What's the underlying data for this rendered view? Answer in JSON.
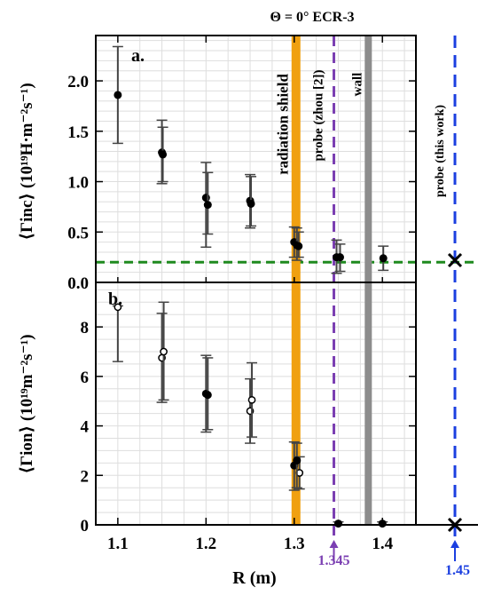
{
  "header": {
    "title": "Θ = 0° ECR-3"
  },
  "chart_data": [
    {
      "type": "scatter",
      "panel_label": "a.",
      "xlim": [
        1.075,
        1.438
      ],
      "ylim": [
        0,
        2.45
      ],
      "yticks": [
        0.0,
        0.5,
        1.0,
        1.5,
        2.0
      ],
      "ytick_labels": [
        "0.0",
        "0.5",
        "1.0",
        "1.5",
        "2.0"
      ],
      "ylabel": "⟨Γinc⟩ (10¹⁹H·m⁻²s⁻¹)",
      "grid": true,
      "series": [
        {
          "marker": "filled-circle",
          "points": [
            {
              "x": 1.1,
              "y": 1.86,
              "lo": 1.38,
              "hi": 2.34
            },
            {
              "x": 1.15,
              "y": 1.29,
              "lo": 0.98,
              "hi": 1.61
            },
            {
              "x": 1.151,
              "y": 1.27,
              "lo": 1.0,
              "hi": 1.54
            },
            {
              "x": 1.2,
              "y": 0.84,
              "lo": 0.35,
              "hi": 1.19
            },
            {
              "x": 1.202,
              "y": 0.77,
              "lo": 0.48,
              "hi": 1.09
            },
            {
              "x": 1.25,
              "y": 0.81,
              "lo": 0.54,
              "hi": 1.07
            },
            {
              "x": 1.251,
              "y": 0.78,
              "lo": 0.56,
              "hi": 1.05
            },
            {
              "x": 1.3,
              "y": 0.4,
              "lo": 0.25,
              "hi": 0.55
            },
            {
              "x": 1.303,
              "y": 0.37,
              "lo": 0.22,
              "hi": 0.54
            },
            {
              "x": 1.305,
              "y": 0.36,
              "lo": 0.25,
              "hi": 0.5
            },
            {
              "x": 1.348,
              "y": 0.25,
              "lo": 0.09,
              "hi": 0.42
            },
            {
              "x": 1.352,
              "y": 0.25,
              "lo": 0.11,
              "hi": 0.38
            },
            {
              "x": 1.401,
              "y": 0.24,
              "lo": 0.12,
              "hi": 0.36
            }
          ]
        }
      ],
      "reference_line": {
        "y": 0.2,
        "style": "dashed",
        "color": "#1f8a1f"
      }
    },
    {
      "type": "scatter",
      "panel_label": "b.",
      "xlim": [
        1.075,
        1.438
      ],
      "ylim": [
        0,
        9.8
      ],
      "yticks": [
        0,
        2,
        4,
        6,
        8
      ],
      "ytick_labels": [
        "0",
        "2",
        "4",
        "6",
        "8"
      ],
      "xticks": [
        1.1,
        1.2,
        1.3,
        1.4
      ],
      "xtick_labels": [
        "1.1",
        "1.2",
        "1.3",
        "1.4"
      ],
      "xlabel": "R (m)",
      "ylabel": "⟨Γion⟩ (10¹⁹m⁻²s⁻¹)",
      "grid": true,
      "series": [
        {
          "marker": "open-circle",
          "points": [
            {
              "x": 1.1,
              "y": 8.8,
              "lo": 6.6,
              "hi": 8.85
            },
            {
              "x": 1.15,
              "y": 6.75,
              "lo": 4.95,
              "hi": 8.55
            },
            {
              "x": 1.152,
              "y": 7.0,
              "lo": 5.05,
              "hi": 9.0
            },
            {
              "x": 1.25,
              "y": 4.6,
              "lo": 3.3,
              "hi": 5.9
            },
            {
              "x": 1.252,
              "y": 5.05,
              "lo": 3.55,
              "hi": 6.55
            },
            {
              "x": 1.306,
              "y": 2.1,
              "lo": 1.45,
              "hi": 2.75
            }
          ]
        },
        {
          "marker": "filled-circle",
          "points": [
            {
              "x": 1.2,
              "y": 5.3,
              "lo": 3.75,
              "hi": 6.85
            },
            {
              "x": 1.202,
              "y": 5.25,
              "lo": 3.85,
              "hi": 6.75
            },
            {
              "x": 1.3,
              "y": 2.4,
              "lo": 1.4,
              "hi": 3.35
            },
            {
              "x": 1.303,
              "y": 2.6,
              "lo": 1.5,
              "hi": 3.3
            },
            {
              "x": 1.35,
              "y": 0.05,
              "lo": 0.0,
              "hi": 0.12
            },
            {
              "x": 1.4,
              "y": 0.05,
              "lo": 0.0,
              "hi": 0.12
            }
          ]
        }
      ]
    }
  ],
  "vertical_markers": [
    {
      "name": "radiation-shield",
      "x": 1.302,
      "label": "radiation shield",
      "color": "#f0a010"
    },
    {
      "name": "probe-zhou",
      "x": 1.345,
      "label": "probe (zhou [2])",
      "color": "#7b3fb2",
      "value_label": "1.345"
    },
    {
      "name": "wall",
      "x": 1.384,
      "label": "wall",
      "color": "#8c8c8c"
    }
  ],
  "outside_probe": {
    "label": "probe (this work)",
    "value_label": "1.45",
    "color": "#1b3fe0",
    "marker_a_y": 0.22,
    "marker_b_y": 0.0
  }
}
